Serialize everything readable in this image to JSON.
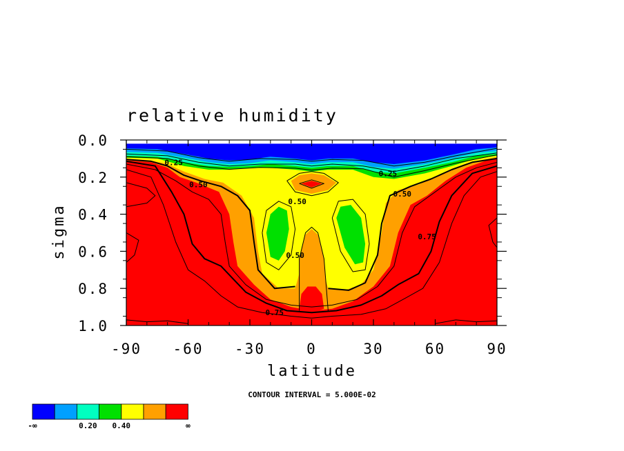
{
  "chart_data": {
    "type": "heatmap",
    "subtype": "filled-contour",
    "title": "relative humidity",
    "xlabel": "latitude",
    "ylabel": "sigma",
    "xlim": [
      -90,
      90
    ],
    "ylim": [
      0.0,
      1.0
    ],
    "y_inverted": true,
    "x_ticks": [
      -90,
      -60,
      -30,
      0,
      30,
      60,
      90
    ],
    "x_tick_labels": [
      "-90",
      "-60",
      "-30",
      "0",
      "30",
      "60",
      "90"
    ],
    "y_ticks": [
      0.0,
      0.2,
      0.4,
      0.6,
      0.8,
      1.0
    ],
    "y_tick_labels": [
      "0.0",
      "0.2",
      "0.4",
      "0.6",
      "0.8",
      "1.0"
    ],
    "contour_interval_text": "CONTOUR INTERVAL = 5.000E-02",
    "contour_labels": [
      {
        "text": "0.25",
        "x": -67,
        "y": 0.12
      },
      {
        "text": "0.25",
        "x": 37,
        "y": 0.18
      },
      {
        "text": "0.50",
        "x": -55,
        "y": 0.24
      },
      {
        "text": "0.50",
        "x": 44,
        "y": 0.29
      },
      {
        "text": "0.50",
        "x": -7,
        "y": 0.33
      },
      {
        "text": "0.50",
        "x": -8,
        "y": 0.62
      },
      {
        "text": "0.75",
        "x": 56,
        "y": 0.52
      },
      {
        "text": "0.75",
        "x": -18,
        "y": 0.93
      }
    ],
    "colorbar": {
      "colors": [
        "#0000ff",
        "#00a0ff",
        "#00ffc0",
        "#00e000",
        "#ffff00",
        "#ffa000",
        "#ff0000"
      ],
      "labels": [
        "-∞",
        "0.20",
        "0.40",
        "∞"
      ]
    }
  }
}
